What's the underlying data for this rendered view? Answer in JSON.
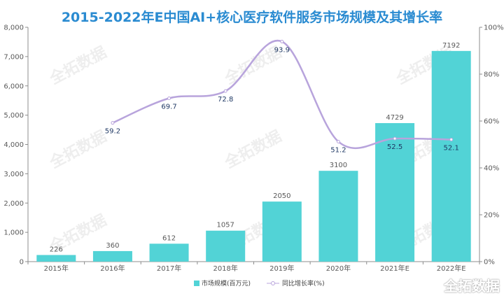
{
  "title": "2015-2022年E中国AI+核心医疗软件服务市场规模及其增长率",
  "watermark": "全拓数据",
  "colors": {
    "bar": "#52d3d6",
    "line": "#b8a4dc",
    "title": "#2a8bd1"
  },
  "chart_data": {
    "type": "bar",
    "title": "2015-2022年E中国AI+核心医疗软件服务市场规模及其增长率",
    "categories": [
      "2015年",
      "2016年",
      "2017年",
      "2018年",
      "2019年",
      "2020年",
      "2021年E",
      "2022年E"
    ],
    "series": [
      {
        "name": "市场规模(百万元)",
        "type": "bar",
        "axis": "left",
        "values": [
          226,
          360,
          612,
          1057,
          2050,
          3100,
          4729,
          7192
        ]
      },
      {
        "name": "同比增长率(%)",
        "type": "line",
        "axis": "right",
        "values": [
          null,
          59.2,
          69.7,
          72.8,
          93.9,
          51.2,
          52.5,
          52.1
        ]
      }
    ],
    "ylim": [
      0,
      8000
    ],
    "y_ticks": [
      "0",
      "1,000",
      "2,000",
      "3,000",
      "4,000",
      "5,000",
      "6,000",
      "7,000",
      "8,000"
    ],
    "y2lim": [
      0,
      100
    ],
    "y2_ticks": [
      "0%",
      "20%",
      "40%",
      "60%",
      "80%",
      "100%"
    ],
    "legend": "bottom",
    "grid": false
  }
}
